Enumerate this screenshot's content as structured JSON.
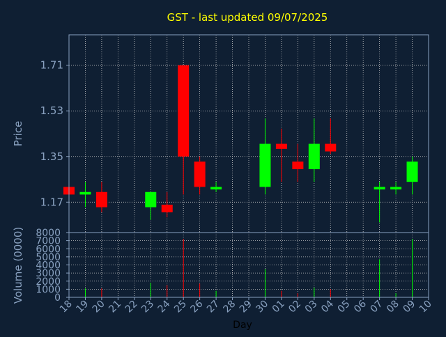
{
  "chart_data": {
    "type": "candlestick",
    "title": "GST - last updated 09/07/2025",
    "xlabel": "Day",
    "price_ylabel": "Price",
    "volume_ylabel": "Volume (0000)",
    "x_ticks": [
      "18",
      "19",
      "20",
      "21",
      "22",
      "23",
      "24",
      "25",
      "26",
      "27",
      "28",
      "29",
      "30",
      "01",
      "02",
      "03",
      "04",
      "05",
      "06",
      "07",
      "08",
      "09",
      "10"
    ],
    "price_ylim": [
      1.05,
      1.83
    ],
    "price_ticks": [
      1.17,
      1.35,
      1.53,
      1.71
    ],
    "price_tick_labels": [
      "1.17",
      "1.35",
      "1.53",
      "1.71"
    ],
    "volume_ylim": [
      0,
      8000
    ],
    "volume_ticks": [
      0,
      1000,
      2000,
      3000,
      4000,
      5000,
      6000,
      7000,
      8000
    ],
    "volume_tick_labels": [
      "0",
      "1000",
      "2000",
      "3000",
      "4000",
      "5000",
      "6000",
      "7000",
      "8000"
    ],
    "grid": true,
    "colors": {
      "background": "#0f1f33",
      "plot_border": "#8aa2c1",
      "grid": "#c8c8c8",
      "up": "#00ff00",
      "down": "#ff0000",
      "title": "#ffff00",
      "axis_text": "#8aa2c1",
      "day_label": "#000000"
    },
    "candles": [
      {
        "x": "18",
        "open": 1.23,
        "high": 1.23,
        "low": 1.2,
        "close": 1.2
      },
      {
        "x": "19",
        "open": 1.2,
        "high": 1.25,
        "low": 1.15,
        "close": 1.21
      },
      {
        "x": "20",
        "open": 1.21,
        "high": 1.25,
        "low": 1.13,
        "close": 1.15
      },
      {
        "x": "23",
        "open": 1.15,
        "high": 1.21,
        "low": 1.1,
        "close": 1.21
      },
      {
        "x": "24",
        "open": 1.16,
        "high": 1.21,
        "low": 1.11,
        "close": 1.13
      },
      {
        "x": "25",
        "open": 1.71,
        "high": 1.71,
        "low": 1.2,
        "close": 1.35
      },
      {
        "x": "26",
        "open": 1.33,
        "high": 1.35,
        "low": 1.2,
        "close": 1.23
      },
      {
        "x": "27",
        "open": 1.22,
        "high": 1.25,
        "low": 1.21,
        "close": 1.23
      },
      {
        "x": "30",
        "open": 1.23,
        "high": 1.5,
        "low": 1.2,
        "close": 1.4
      },
      {
        "x": "01",
        "open": 1.4,
        "high": 1.46,
        "low": 1.25,
        "close": 1.38
      },
      {
        "x": "02",
        "open": 1.33,
        "high": 1.4,
        "low": 1.25,
        "close": 1.3
      },
      {
        "x": "03",
        "open": 1.3,
        "high": 1.5,
        "low": 1.25,
        "close": 1.4
      },
      {
        "x": "04",
        "open": 1.4,
        "high": 1.5,
        "low": 1.36,
        "close": 1.37
      },
      {
        "x": "07",
        "open": 1.22,
        "high": 1.25,
        "low": 1.09,
        "close": 1.23
      },
      {
        "x": "08",
        "open": 1.22,
        "high": 1.25,
        "low": 1.2,
        "close": 1.23
      },
      {
        "x": "09",
        "open": 1.25,
        "high": 1.35,
        "low": 1.2,
        "close": 1.33
      }
    ],
    "volume": [
      {
        "x": "18",
        "value": 0
      },
      {
        "x": "19",
        "value": 1100
      },
      {
        "x": "20",
        "value": 1100
      },
      {
        "x": "23",
        "value": 1800
      },
      {
        "x": "24",
        "value": 1500
      },
      {
        "x": "25",
        "value": 7200
      },
      {
        "x": "26",
        "value": 1700
      },
      {
        "x": "27",
        "value": 800
      },
      {
        "x": "30",
        "value": 3500
      },
      {
        "x": "01",
        "value": 800
      },
      {
        "x": "02",
        "value": 500
      },
      {
        "x": "03",
        "value": 1200
      },
      {
        "x": "04",
        "value": 1000
      },
      {
        "x": "07",
        "value": 4700
      },
      {
        "x": "08",
        "value": 500
      },
      {
        "x": "09",
        "value": 7200
      }
    ]
  }
}
